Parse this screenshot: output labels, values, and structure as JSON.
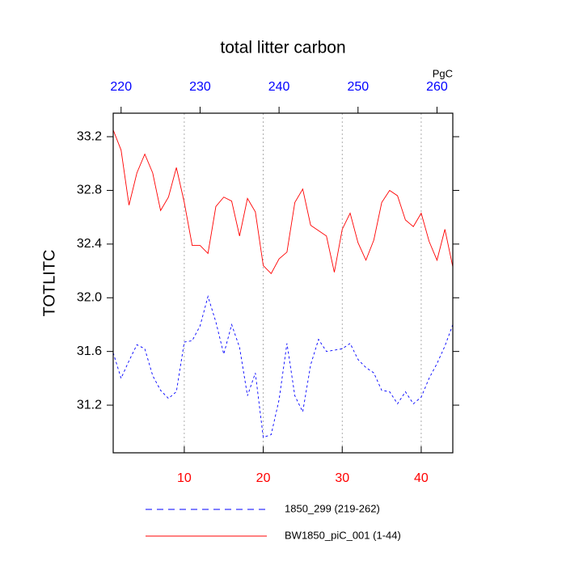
{
  "chart_data": {
    "type": "line",
    "title": "total litter carbon",
    "ylabel": "TOTLITC",
    "x2label": "PgC",
    "x": [
      1,
      2,
      3,
      4,
      5,
      6,
      7,
      8,
      9,
      10,
      11,
      12,
      13,
      14,
      15,
      16,
      17,
      18,
      19,
      20,
      21,
      22,
      23,
      24,
      25,
      26,
      27,
      28,
      29,
      30,
      31,
      32,
      33,
      34,
      35,
      36,
      37,
      38,
      39,
      40,
      41,
      42,
      43,
      44
    ],
    "xlim": [
      1,
      44
    ],
    "xticks": [
      10,
      20,
      30,
      40
    ],
    "xtick_color": "#ff0000",
    "x2lim": [
      219,
      262
    ],
    "x2ticks": [
      220,
      230,
      240,
      250,
      260
    ],
    "x2tick_color": "#0000ff",
    "ylim": [
      30.845,
      33.375
    ],
    "yticks": [
      {
        "value": 31.2,
        "label": "31.2"
      },
      {
        "value": 31.6,
        "label": "31.6"
      },
      {
        "value": 32.0,
        "label": "32.0"
      },
      {
        "value": 32.4,
        "label": "32.4"
      },
      {
        "value": 32.8,
        "label": "32.8"
      },
      {
        "value": 33.2,
        "label": "33.2"
      }
    ],
    "grid": "x",
    "legend_position": "bottom",
    "series": [
      {
        "name": "1850_299 (219-262)",
        "color": "#0000ff",
        "dash": "dashed",
        "values": [
          31.59,
          31.4,
          31.53,
          31.65,
          31.62,
          31.42,
          31.31,
          31.25,
          31.3,
          31.67,
          31.68,
          31.79,
          32.01,
          31.82,
          31.58,
          31.8,
          31.63,
          31.27,
          31.44,
          30.96,
          30.98,
          31.24,
          31.66,
          31.27,
          31.15,
          31.5,
          31.69,
          31.6,
          31.61,
          31.62,
          31.66,
          31.54,
          31.48,
          31.44,
          31.31,
          31.3,
          31.21,
          31.3,
          31.21,
          31.26,
          31.4,
          31.51,
          31.64,
          31.8
        ]
      },
      {
        "name": "BW1850_piC_001 (1-44)",
        "color": "#ff0000",
        "dash": "solid",
        "values": [
          33.25,
          33.1,
          32.69,
          32.93,
          33.07,
          32.93,
          32.65,
          32.75,
          32.97,
          32.71,
          32.39,
          32.39,
          32.33,
          32.68,
          32.75,
          32.72,
          32.46,
          32.74,
          32.64,
          32.24,
          32.18,
          32.29,
          32.34,
          32.71,
          32.81,
          32.54,
          32.5,
          32.46,
          32.19,
          32.51,
          32.63,
          32.41,
          32.28,
          32.43,
          32.71,
          32.8,
          32.76,
          32.58,
          32.53,
          32.63,
          32.42,
          32.28,
          32.51,
          32.23
        ]
      }
    ]
  }
}
